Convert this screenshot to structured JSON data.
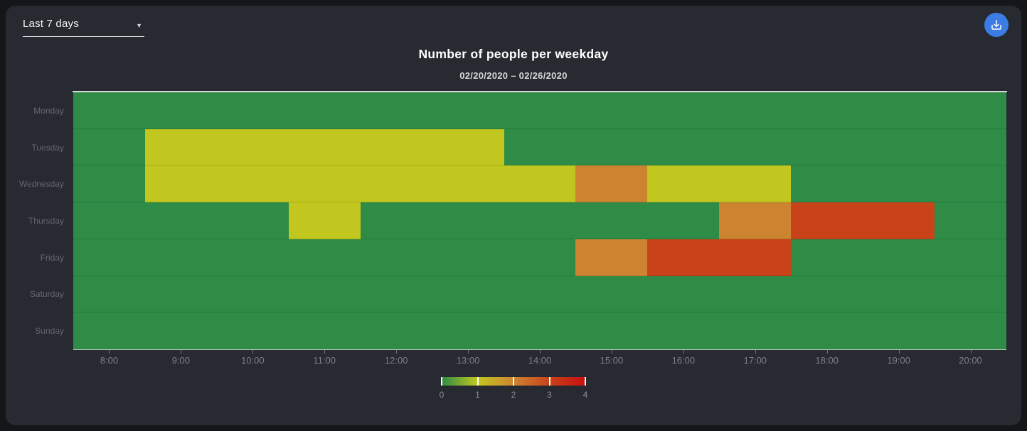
{
  "toolbar": {
    "range_selector": {
      "value": "Last 7 days",
      "caret": "▼"
    },
    "download_button": {
      "icon": "download-icon",
      "color": "#3b7de4"
    }
  },
  "chart_data": {
    "type": "heatmap",
    "title": "Number of people per weekday",
    "subtitle": "02/20/2020 – 02/26/2020",
    "weekdays": [
      "Monday",
      "Tuesday",
      "Wednesday",
      "Thursday",
      "Friday",
      "Saturday",
      "Sunday"
    ],
    "x_axis": {
      "unit": "time of day",
      "range_hours": [
        7.5,
        20.5
      ],
      "tick_labels": [
        "8:00",
        "9:00",
        "10:00",
        "11:00",
        "12:00",
        "13:00",
        "14:00",
        "15:00",
        "16:00",
        "17:00",
        "18:00",
        "19:00",
        "20:00"
      ]
    },
    "value_axis": {
      "min": 0,
      "max": 4,
      "label_values": [
        "0",
        "1",
        "2",
        "3",
        "4"
      ]
    },
    "base_value": 0,
    "cells": [
      {
        "day": "Tuesday",
        "start": "8:30",
        "end": "13:30",
        "value": 1
      },
      {
        "day": "Wednesday",
        "start": "8:30",
        "end": "14:30",
        "value": 1
      },
      {
        "day": "Wednesday",
        "start": "14:30",
        "end": "15:30",
        "value": 2
      },
      {
        "day": "Wednesday",
        "start": "15:30",
        "end": "17:30",
        "value": 1
      },
      {
        "day": "Thursday",
        "start": "10:30",
        "end": "11:30",
        "value": 1
      },
      {
        "day": "Thursday",
        "start": "16:30",
        "end": "17:30",
        "value": 2
      },
      {
        "day": "Thursday",
        "start": "17:30",
        "end": "19:30",
        "value": 3
      },
      {
        "day": "Friday",
        "start": "14:30",
        "end": "15:30",
        "value": 2
      },
      {
        "day": "Friday",
        "start": "15:30",
        "end": "17:30",
        "value": 3
      }
    ],
    "value_colors": {
      "0": "#2e8c46",
      "1": "#c2c71f",
      "2": "#cc8431",
      "3": "#c8431a",
      "4": "#c90f0f"
    },
    "legend_position": "bottom"
  },
  "colors": {
    "outer_background": "#141619",
    "panel_background": "#272a31",
    "accent_blue": "#3b7de4",
    "plot_top_border": "#d8d9db",
    "axis_line": "#c6c8ca",
    "x_label": "#7d8186",
    "y_label": "#63676d",
    "legend_label": "#8d9196"
  }
}
